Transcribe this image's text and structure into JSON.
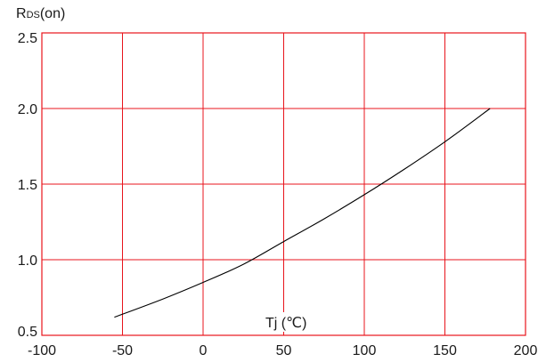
{
  "chart_data": {
    "type": "line",
    "ylabel_main": "R",
    "ylabel_sub": "DS",
    "ylabel_suffix": "(on)",
    "xlabel": "Tj (℃)",
    "xlim": [
      -100,
      200
    ],
    "ylim": [
      0.5,
      2.5
    ],
    "x_ticks": [
      -100,
      -50,
      0,
      50,
      100,
      150,
      200
    ],
    "y_ticks": [
      0.5,
      1.0,
      1.5,
      2.0,
      2.5
    ],
    "x_tick_labels": [
      "-100",
      "-50",
      "0",
      "50",
      "100",
      "150",
      "200"
    ],
    "y_tick_labels": [
      "0.5",
      "1.0",
      "1.5",
      "2.0",
      "2.5"
    ],
    "grid": true,
    "grid_color": "#e8141c",
    "line_color": "#000000",
    "series": [
      {
        "x": [
          -55,
          -25,
          0,
          25,
          50,
          75,
          100,
          125,
          150,
          178
        ],
        "y": [
          0.62,
          0.74,
          0.85,
          0.97,
          1.12,
          1.27,
          1.43,
          1.6,
          1.78,
          2.0
        ]
      }
    ]
  }
}
